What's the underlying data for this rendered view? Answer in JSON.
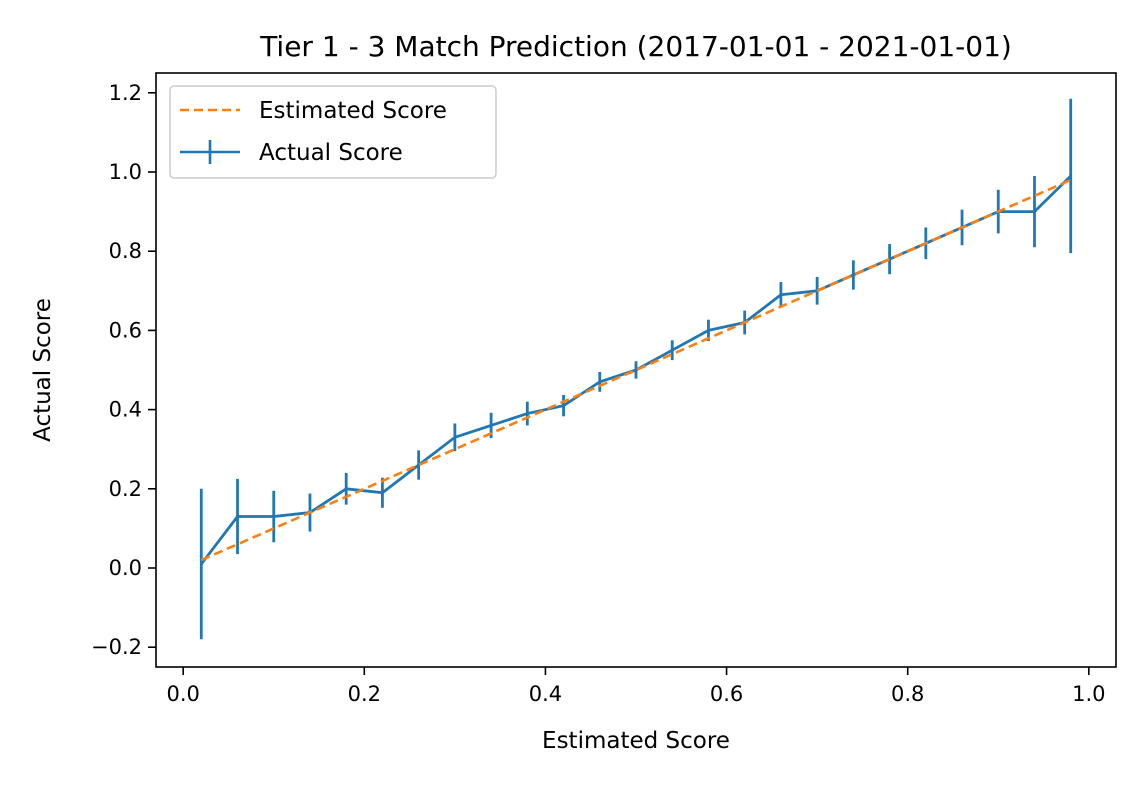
{
  "chart_data": {
    "type": "line",
    "title": "Tier 1 - 3 Match Prediction (2017-01-01 - 2021-01-01)",
    "xlabel": "Estimated Score",
    "ylabel": "Actual Score",
    "xlim": [
      -0.03,
      1.03
    ],
    "ylim": [
      -0.25,
      1.25
    ],
    "x_ticks": [
      0.0,
      0.2,
      0.4,
      0.6,
      0.8,
      1.0
    ],
    "x_tick_labels": [
      "0.0",
      "0.2",
      "0.4",
      "0.6",
      "0.8",
      "1.0"
    ],
    "y_ticks": [
      -0.2,
      0.0,
      0.2,
      0.4,
      0.6,
      0.8,
      1.0,
      1.2
    ],
    "y_tick_labels": [
      "−0.2",
      "0.0",
      "0.2",
      "0.4",
      "0.6",
      "0.8",
      "1.0",
      "1.2"
    ],
    "grid": false,
    "legend_position": "top-left",
    "series": [
      {
        "name": "Estimated Score",
        "color": "#ff7f0e",
        "style": "dashed",
        "x": [
          0.02,
          0.98
        ],
        "y": [
          0.02,
          0.98
        ]
      },
      {
        "name": "Actual Score",
        "color": "#1f77b4",
        "style": "solid",
        "x": [
          0.02,
          0.06,
          0.1,
          0.14,
          0.18,
          0.22,
          0.26,
          0.3,
          0.34,
          0.38,
          0.42,
          0.46,
          0.5,
          0.54,
          0.58,
          0.62,
          0.66,
          0.7,
          0.74,
          0.78,
          0.82,
          0.86,
          0.9,
          0.94,
          0.98
        ],
        "y": [
          0.01,
          0.13,
          0.13,
          0.14,
          0.2,
          0.19,
          0.26,
          0.33,
          0.36,
          0.39,
          0.41,
          0.47,
          0.5,
          0.55,
          0.6,
          0.62,
          0.69,
          0.7,
          0.74,
          0.78,
          0.82,
          0.86,
          0.9,
          0.9,
          0.99
        ],
        "error": [
          0.19,
          0.095,
          0.065,
          0.048,
          0.04,
          0.038,
          0.037,
          0.035,
          0.032,
          0.03,
          0.027,
          0.025,
          0.022,
          0.025,
          0.027,
          0.03,
          0.032,
          0.035,
          0.037,
          0.038,
          0.04,
          0.045,
          0.055,
          0.09,
          0.195
        ]
      }
    ]
  }
}
